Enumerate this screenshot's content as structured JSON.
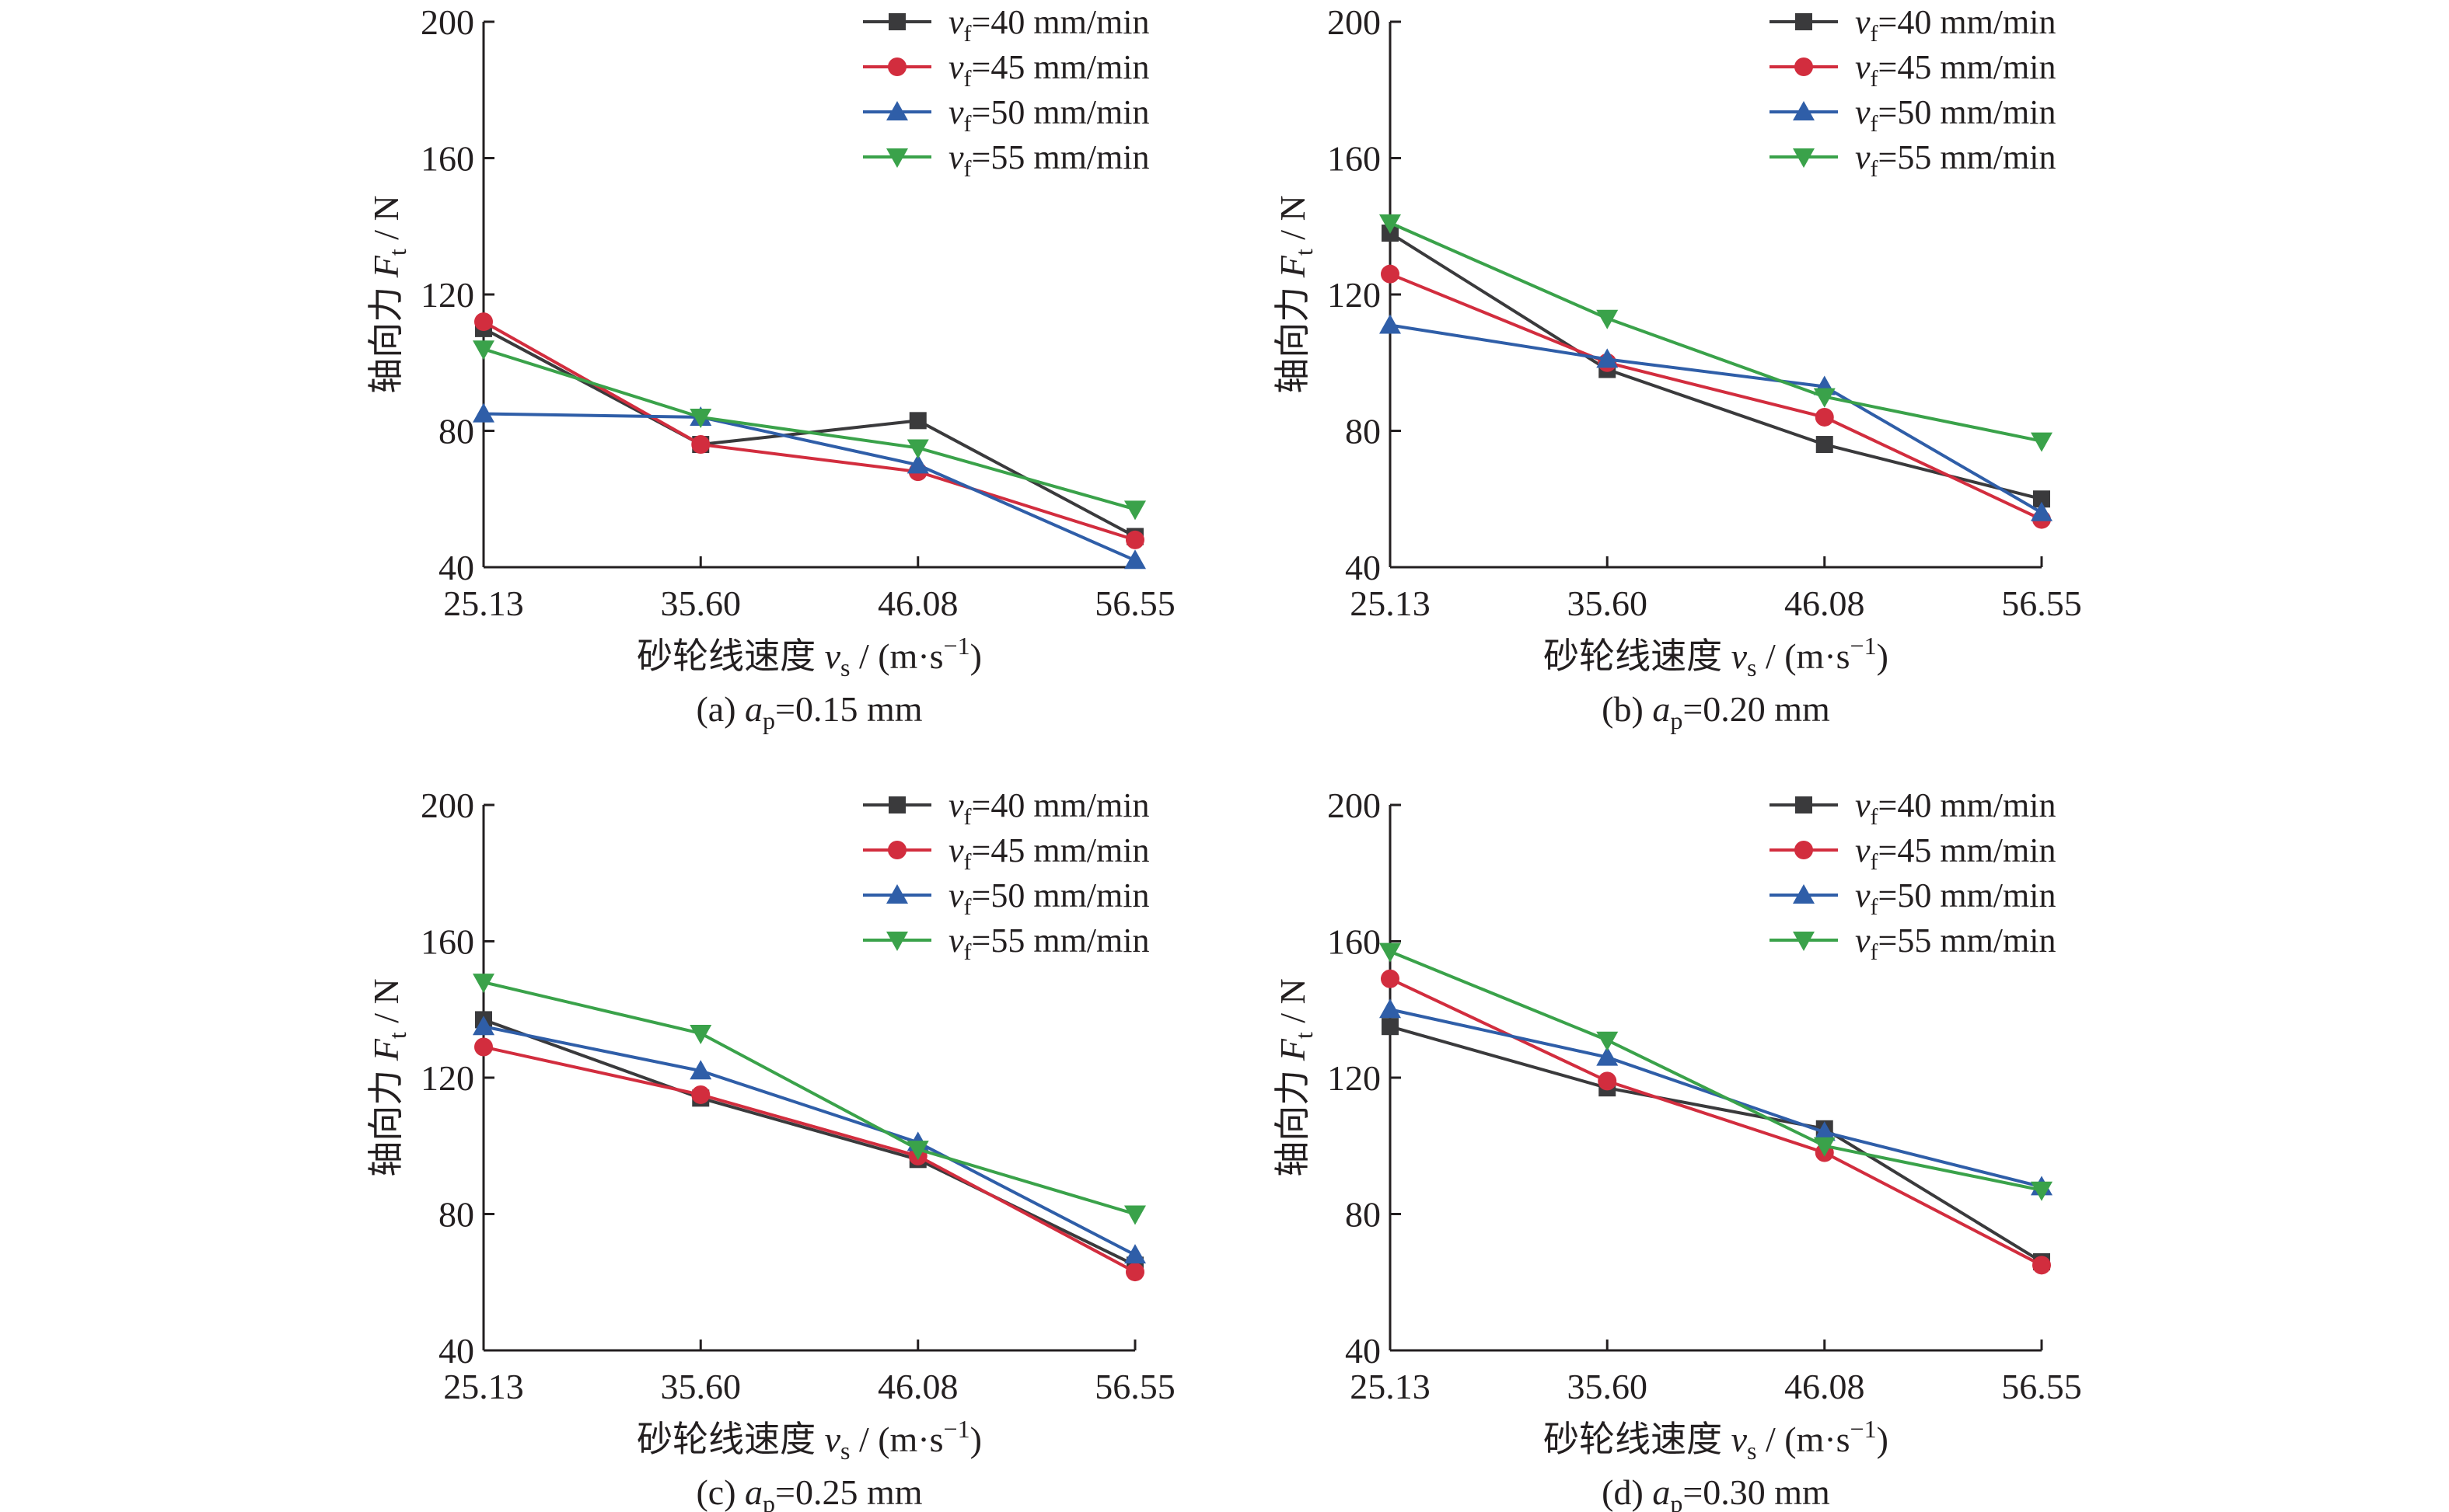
{
  "colors": {
    "axis": "#231f20",
    "series": [
      "#3a3a3c",
      "#d22d3e",
      "#2f5ea8",
      "#3aa24a"
    ]
  },
  "legend": [
    {
      "sub": "f",
      "value": "=40 mm/min",
      "marker": "square"
    },
    {
      "sub": "f",
      "value": "=45 mm/min",
      "marker": "circle"
    },
    {
      "sub": "f",
      "value": "=50 mm/min",
      "marker": "triangle-up"
    },
    {
      "sub": "f",
      "value": "=55 mm/min",
      "marker": "triangle-down"
    }
  ],
  "chart_data": [
    {
      "type": "line",
      "caption": {
        "prefix": "(a) ",
        "sub": "p",
        "value": "=0.15 mm"
      },
      "xlabel": {
        "prefix": "砂轮线速度 ",
        "sub": "s",
        "suffix": " / (m·s",
        "sup": "−1",
        "close": ")"
      },
      "ylabel": {
        "prefix": "轴向力 ",
        "sub": "t",
        "suffix": " / N"
      },
      "x": [
        25.13,
        35.6,
        46.08,
        56.55
      ],
      "x_ticks": [
        "25.13",
        "35.60",
        "46.08",
        "56.55"
      ],
      "ylim": [
        40,
        200
      ],
      "y_ticks": [
        "40",
        "80",
        "120",
        "160",
        "200"
      ],
      "series": [
        {
          "name": "vf=40 mm/min",
          "values": [
            110,
            76,
            83,
            49
          ]
        },
        {
          "name": "vf=45 mm/min",
          "values": [
            112,
            76,
            68,
            48
          ]
        },
        {
          "name": "vf=50 mm/min",
          "values": [
            85,
            84,
            70,
            42
          ]
        },
        {
          "name": "vf=55 mm/min",
          "values": [
            104,
            84,
            75,
            57
          ]
        }
      ]
    },
    {
      "type": "line",
      "caption": {
        "prefix": "(b) ",
        "sub": "p",
        "value": "=0.20 mm"
      },
      "xlabel": {
        "prefix": "砂轮线速度 ",
        "sub": "s",
        "suffix": " / (m·s",
        "sup": "−1",
        "close": ")"
      },
      "ylabel": {
        "prefix": "轴向力 ",
        "sub": "t",
        "suffix": " / N"
      },
      "x": [
        25.13,
        35.6,
        46.08,
        56.55
      ],
      "x_ticks": [
        "25.13",
        "35.60",
        "46.08",
        "56.55"
      ],
      "ylim": [
        40,
        200
      ],
      "y_ticks": [
        "40",
        "80",
        "120",
        "160",
        "200"
      ],
      "series": [
        {
          "name": "vf=40 mm/min",
          "values": [
            138,
            98,
            76,
            60
          ]
        },
        {
          "name": "vf=45 mm/min",
          "values": [
            126,
            100,
            84,
            54
          ]
        },
        {
          "name": "vf=50 mm/min",
          "values": [
            111,
            101,
            93,
            56
          ]
        },
        {
          "name": "vf=55 mm/min",
          "values": [
            141,
            113,
            90,
            77
          ]
        }
      ]
    },
    {
      "type": "line",
      "caption": {
        "prefix": "(c) ",
        "sub": "p",
        "value": "=0.25 mm"
      },
      "xlabel": {
        "prefix": "砂轮线速度 ",
        "sub": "s",
        "suffix": " / (m·s",
        "sup": "−1",
        "close": ")"
      },
      "ylabel": {
        "prefix": "轴向力 ",
        "sub": "t",
        "suffix": " / N"
      },
      "x": [
        25.13,
        35.6,
        46.08,
        56.55
      ],
      "x_ticks": [
        "25.13",
        "35.60",
        "46.08",
        "56.55"
      ],
      "ylim": [
        40,
        200
      ],
      "y_ticks": [
        "40",
        "80",
        "120",
        "160",
        "200"
      ],
      "series": [
        {
          "name": "vf=40 mm/min",
          "values": [
            137,
            114,
            96,
            65
          ]
        },
        {
          "name": "vf=45 mm/min",
          "values": [
            129,
            115,
            97,
            63
          ]
        },
        {
          "name": "vf=50 mm/min",
          "values": [
            135,
            122,
            101,
            68
          ]
        },
        {
          "name": "vf=55 mm/min",
          "values": [
            148,
            133,
            99,
            80
          ]
        }
      ]
    },
    {
      "type": "line",
      "caption": {
        "prefix": "(d) ",
        "sub": "p",
        "value": "=0.30 mm"
      },
      "xlabel": {
        "prefix": "砂轮线速度 ",
        "sub": "s",
        "suffix": " / (m·s",
        "sup": "−1",
        "close": ")"
      },
      "ylabel": {
        "prefix": "轴向力 ",
        "sub": "t",
        "suffix": " / N"
      },
      "x": [
        25.13,
        35.6,
        46.08,
        56.55
      ],
      "x_ticks": [
        "25.13",
        "35.60",
        "46.08",
        "56.55"
      ],
      "ylim": [
        40,
        200
      ],
      "y_ticks": [
        "40",
        "80",
        "120",
        "160",
        "200"
      ],
      "series": [
        {
          "name": "vf=40 mm/min",
          "values": [
            135,
            117,
            105,
            66
          ]
        },
        {
          "name": "vf=45 mm/min",
          "values": [
            149,
            119,
            98,
            65
          ]
        },
        {
          "name": "vf=50 mm/min",
          "values": [
            140,
            126,
            104,
            88
          ]
        },
        {
          "name": "vf=55 mm/min",
          "values": [
            157,
            131,
            100,
            87
          ]
        }
      ]
    }
  ]
}
